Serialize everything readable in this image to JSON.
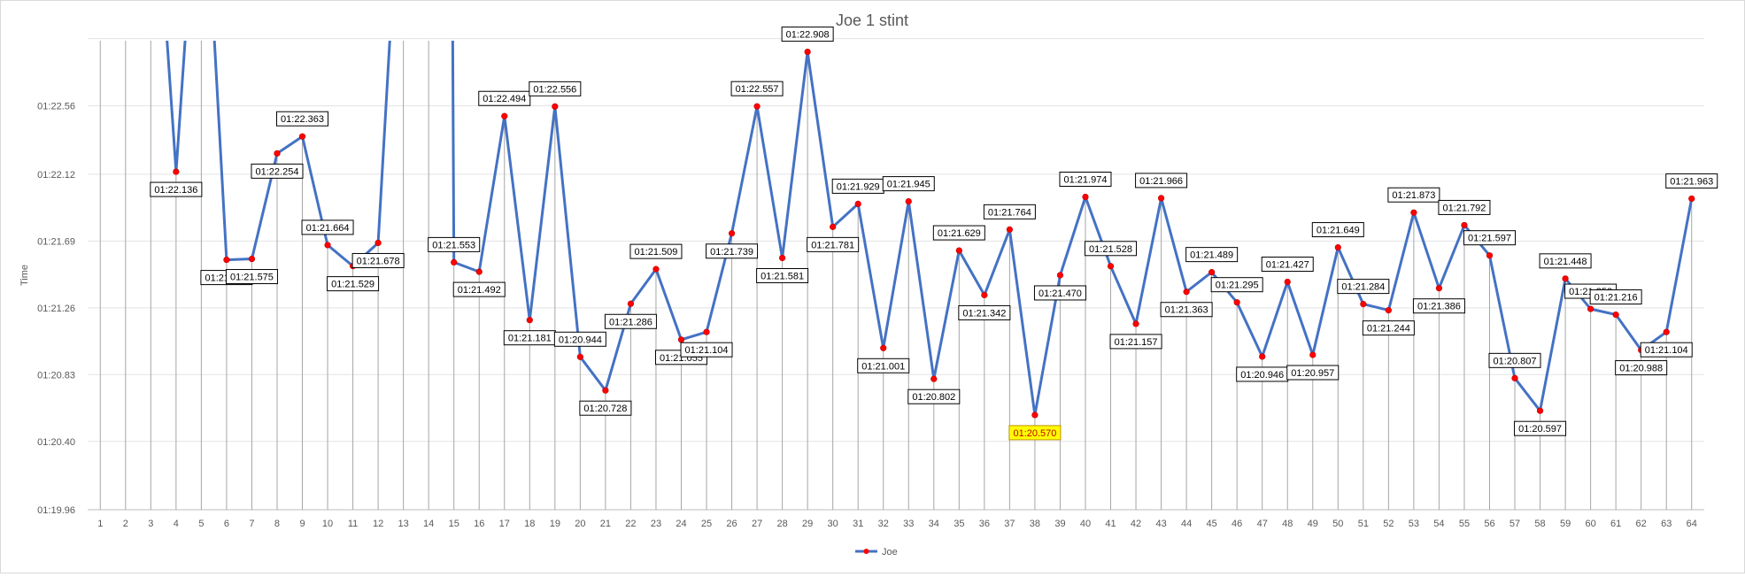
{
  "chart_data": {
    "type": "line",
    "title": "Joe 1 stint",
    "xlabel": "",
    "ylabel": "Time",
    "x": [
      1,
      2,
      3,
      4,
      5,
      6,
      7,
      8,
      9,
      10,
      11,
      12,
      13,
      14,
      15,
      16,
      17,
      18,
      19,
      20,
      21,
      22,
      23,
      24,
      25,
      26,
      27,
      28,
      29,
      30,
      31,
      32,
      33,
      34,
      35,
      36,
      37,
      38,
      39,
      40,
      41,
      42,
      43,
      44,
      45,
      46,
      47,
      48,
      49,
      50,
      51,
      52,
      53,
      54,
      55,
      56,
      57,
      58,
      59,
      60,
      61,
      62,
      63,
      64
    ],
    "ylim": [
      79.96,
      83.3
    ],
    "yticks": [
      79.96,
      80.4,
      80.83,
      81.26,
      81.69,
      82.12,
      82.56
    ],
    "ytick_labels": [
      "01:19.96",
      "01:20.40",
      "01:20.83",
      "01:21.26",
      "01:21.69",
      "01:22.12",
      "01:22.56"
    ],
    "grid": true,
    "legend_position": "bottom",
    "series": [
      {
        "name": "Joe",
        "color": "#4472c4",
        "marker_color": "#ff0000",
        "points": [
          {
            "x": 3,
            "y": 84.5,
            "label": ""
          },
          {
            "x": 4,
            "y": 82.136,
            "label": "01:22.136"
          },
          {
            "x": 5,
            "y": 84.5,
            "label": ""
          },
          {
            "x": 6,
            "y": 81.569,
            "label": "01:21.569"
          },
          {
            "x": 7,
            "y": 81.575,
            "label": "01:21.575"
          },
          {
            "x": 8,
            "y": 82.254,
            "label": "01:22.254"
          },
          {
            "x": 9,
            "y": 82.363,
            "label": "01:22.363"
          },
          {
            "x": 10,
            "y": 81.664,
            "label": "01:21.664"
          },
          {
            "x": 11,
            "y": 81.529,
            "label": "01:21.529"
          },
          {
            "x": 12,
            "y": 81.678,
            "label": "01:21.678"
          },
          {
            "x": 13,
            "y": 84.5,
            "label": ""
          },
          {
            "x": 14.9,
            "y": 84.5,
            "label": ""
          },
          {
            "x": 15,
            "y": 81.553,
            "label": "01:21.553"
          },
          {
            "x": 16,
            "y": 81.492,
            "label": "01:21.492"
          },
          {
            "x": 17,
            "y": 82.494,
            "label": "01:22.494"
          },
          {
            "x": 18,
            "y": 81.181,
            "label": "01:21.181"
          },
          {
            "x": 19,
            "y": 82.556,
            "label": "01:22.556"
          },
          {
            "x": 20,
            "y": 80.944,
            "label": "01:20.944"
          },
          {
            "x": 21,
            "y": 80.728,
            "label": "01:20.728"
          },
          {
            "x": 22,
            "y": 81.286,
            "label": "01:21.286"
          },
          {
            "x": 23,
            "y": 81.509,
            "label": "01:21.509"
          },
          {
            "x": 24,
            "y": 81.055,
            "label": "01:21.055"
          },
          {
            "x": 25,
            "y": 81.104,
            "label": "01:21.104"
          },
          {
            "x": 26,
            "y": 81.739,
            "label": "01:21.739"
          },
          {
            "x": 27,
            "y": 82.557,
            "label": "01:22.557"
          },
          {
            "x": 28,
            "y": 81.581,
            "label": "01:21.581"
          },
          {
            "x": 29,
            "y": 82.908,
            "label": "01:22.908"
          },
          {
            "x": 30,
            "y": 81.781,
            "label": "01:21.781"
          },
          {
            "x": 31,
            "y": 81.929,
            "label": "01:21.929"
          },
          {
            "x": 32,
            "y": 81.001,
            "label": "01:21.001"
          },
          {
            "x": 33,
            "y": 81.945,
            "label": "01:21.945"
          },
          {
            "x": 34,
            "y": 80.802,
            "label": "01:20.802"
          },
          {
            "x": 35,
            "y": 81.629,
            "label": "01:21.629"
          },
          {
            "x": 36,
            "y": 81.342,
            "label": "01:21.342"
          },
          {
            "x": 37,
            "y": 81.764,
            "label": "01:21.764"
          },
          {
            "x": 38,
            "y": 80.57,
            "label": "01:20.570",
            "highlight": true
          },
          {
            "x": 39,
            "y": 81.47,
            "label": "01:21.470"
          },
          {
            "x": 40,
            "y": 81.974,
            "label": "01:21.974"
          },
          {
            "x": 41,
            "y": 81.528,
            "label": "01:21.528"
          },
          {
            "x": 42,
            "y": 81.157,
            "label": "01:21.157"
          },
          {
            "x": 43,
            "y": 81.966,
            "label": "01:21.966"
          },
          {
            "x": 44,
            "y": 81.363,
            "label": "01:21.363"
          },
          {
            "x": 45,
            "y": 81.489,
            "label": "01:21.489"
          },
          {
            "x": 46,
            "y": 81.295,
            "label": "01:21.295"
          },
          {
            "x": 47,
            "y": 80.946,
            "label": "01:20.946"
          },
          {
            "x": 48,
            "y": 81.427,
            "label": "01:21.427"
          },
          {
            "x": 49,
            "y": 80.957,
            "label": "01:20.957"
          },
          {
            "x": 50,
            "y": 81.649,
            "label": "01:21.649"
          },
          {
            "x": 51,
            "y": 81.284,
            "label": "01:21.284"
          },
          {
            "x": 52,
            "y": 81.244,
            "label": "01:21.244"
          },
          {
            "x": 53,
            "y": 81.873,
            "label": "01:21.873"
          },
          {
            "x": 54,
            "y": 81.386,
            "label": "01:21.386"
          },
          {
            "x": 55,
            "y": 81.792,
            "label": "01:21.792"
          },
          {
            "x": 56,
            "y": 81.597,
            "label": "01:21.597"
          },
          {
            "x": 57,
            "y": 80.807,
            "label": "01:20.807"
          },
          {
            "x": 58,
            "y": 80.597,
            "label": "01:20.597"
          },
          {
            "x": 59,
            "y": 81.448,
            "label": "01:21.448"
          },
          {
            "x": 60,
            "y": 81.253,
            "label": "01:21.253"
          },
          {
            "x": 61,
            "y": 81.216,
            "label": "01:21.216"
          },
          {
            "x": 62,
            "y": 80.988,
            "label": "01:20.988"
          },
          {
            "x": 63,
            "y": 81.104,
            "label": "01:21.104"
          },
          {
            "x": 64,
            "y": 81.963,
            "label": "01:21.963"
          }
        ]
      }
    ],
    "highlight_fill": "#ffff00",
    "highlight_text": "#c00000"
  }
}
